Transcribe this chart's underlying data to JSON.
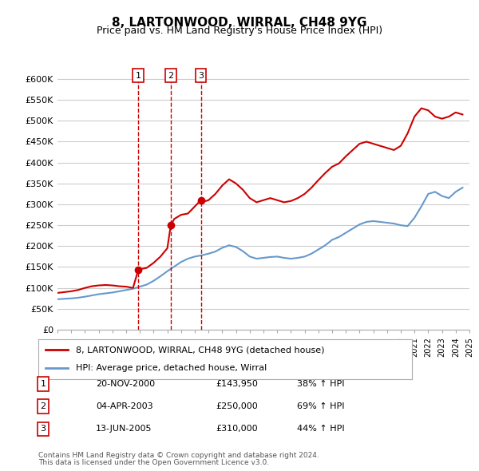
{
  "title": "8, LARTONWOOD, WIRRAL, CH48 9YG",
  "subtitle": "Price paid vs. HM Land Registry's House Price Index (HPI)",
  "ylabel": "",
  "xlabel": "",
  "ylim": [
    0,
    620000
  ],
  "yticks": [
    0,
    50000,
    100000,
    150000,
    200000,
    250000,
    300000,
    350000,
    400000,
    450000,
    500000,
    550000,
    600000
  ],
  "ytick_labels": [
    "£0",
    "£50K",
    "£100K",
    "£150K",
    "£200K",
    "£250K",
    "£300K",
    "£350K",
    "£400K",
    "£450K",
    "£500K",
    "£550K",
    "£600K"
  ],
  "background_color": "#ffffff",
  "grid_color": "#cccccc",
  "sale_dates_num": [
    2000.89,
    2003.25,
    2005.44
  ],
  "sale_labels": [
    "1",
    "2",
    "3"
  ],
  "sale_prices": [
    143950,
    250000,
    310000
  ],
  "sale_dates_str": [
    "20-NOV-2000",
    "04-APR-2003",
    "13-JUN-2005"
  ],
  "sale_pct": [
    "38% ↑ HPI",
    "69% ↑ HPI",
    "44% ↑ HPI"
  ],
  "legend_property": "8, LARTONWOOD, WIRRAL, CH48 9YG (detached house)",
  "legend_hpi": "HPI: Average price, detached house, Wirral",
  "footer1": "Contains HM Land Registry data © Crown copyright and database right 2024.",
  "footer2": "This data is licensed under the Open Government Licence v3.0.",
  "property_color": "#cc0000",
  "hpi_color": "#6699cc",
  "vline_color": "#cc0000",
  "marker_color": "#cc0000",
  "hpi_x": [
    1995.0,
    1995.5,
    1996.0,
    1996.5,
    1997.0,
    1997.5,
    1998.0,
    1998.5,
    1999.0,
    1999.5,
    2000.0,
    2000.5,
    2001.0,
    2001.5,
    2002.0,
    2002.5,
    2003.0,
    2003.5,
    2004.0,
    2004.5,
    2005.0,
    2005.5,
    2006.0,
    2006.5,
    2007.0,
    2007.5,
    2008.0,
    2008.5,
    2009.0,
    2009.5,
    2010.0,
    2010.5,
    2011.0,
    2011.5,
    2012.0,
    2012.5,
    2013.0,
    2013.5,
    2014.0,
    2014.5,
    2015.0,
    2015.5,
    2016.0,
    2016.5,
    2017.0,
    2017.5,
    2018.0,
    2018.5,
    2019.0,
    2019.5,
    2020.0,
    2020.5,
    2021.0,
    2021.5,
    2022.0,
    2022.5,
    2023.0,
    2023.5,
    2024.0,
    2024.5
  ],
  "hpi_y": [
    73000,
    74000,
    75000,
    76500,
    79000,
    82000,
    85000,
    87000,
    89000,
    92000,
    95000,
    98000,
    103000,
    108000,
    117000,
    128000,
    140000,
    151000,
    162000,
    170000,
    175000,
    178000,
    182000,
    187000,
    196000,
    202000,
    198000,
    188000,
    175000,
    170000,
    172000,
    174000,
    175000,
    172000,
    170000,
    172000,
    175000,
    182000,
    192000,
    202000,
    215000,
    222000,
    232000,
    242000,
    252000,
    258000,
    260000,
    258000,
    256000,
    254000,
    250000,
    248000,
    268000,
    295000,
    325000,
    330000,
    320000,
    315000,
    330000,
    340000
  ],
  "prop_x": [
    1995.0,
    1995.5,
    1996.0,
    1996.5,
    1997.0,
    1997.5,
    1998.0,
    1998.5,
    1999.0,
    1999.5,
    2000.0,
    2000.5,
    2000.89,
    2001.5,
    2002.0,
    2002.5,
    2003.0,
    2003.25,
    2003.5,
    2004.0,
    2004.5,
    2005.0,
    2005.44,
    2005.5,
    2006.0,
    2006.5,
    2007.0,
    2007.5,
    2008.0,
    2008.5,
    2009.0,
    2009.5,
    2010.0,
    2010.5,
    2011.0,
    2011.5,
    2012.0,
    2012.5,
    2013.0,
    2013.5,
    2014.0,
    2014.5,
    2015.0,
    2015.5,
    2016.0,
    2016.5,
    2017.0,
    2017.5,
    2018.0,
    2018.5,
    2019.0,
    2019.5,
    2020.0,
    2020.5,
    2021.0,
    2021.5,
    2022.0,
    2022.5,
    2023.0,
    2023.5,
    2024.0,
    2024.5
  ],
  "prop_y": [
    88000,
    90000,
    92000,
    95000,
    100000,
    104000,
    106000,
    107000,
    106000,
    104000,
    103000,
    100000,
    143950,
    148000,
    160000,
    175000,
    195000,
    250000,
    265000,
    275000,
    278000,
    295000,
    310000,
    305000,
    310000,
    325000,
    345000,
    360000,
    350000,
    335000,
    315000,
    305000,
    310000,
    315000,
    310000,
    305000,
    308000,
    315000,
    325000,
    340000,
    358000,
    375000,
    390000,
    398000,
    415000,
    430000,
    445000,
    450000,
    445000,
    440000,
    435000,
    430000,
    440000,
    470000,
    510000,
    530000,
    525000,
    510000,
    505000,
    510000,
    520000,
    515000
  ]
}
